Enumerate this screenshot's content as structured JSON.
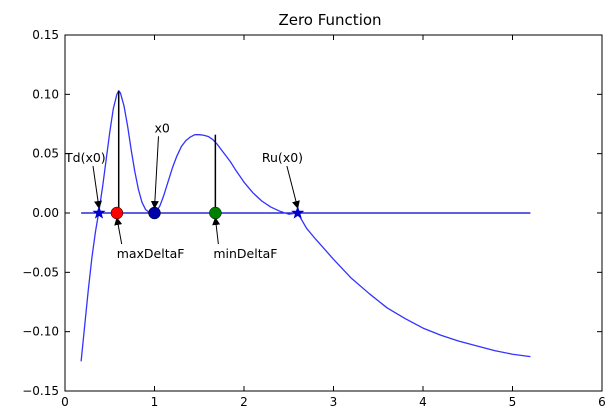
{
  "chart_data": {
    "type": "line",
    "title": "Zero Function",
    "xlabel": "",
    "ylabel": "",
    "xlim": [
      0,
      6
    ],
    "ylim": [
      -0.15,
      0.15
    ],
    "x_ticks": [
      0,
      1,
      2,
      3,
      4,
      5,
      6
    ],
    "y_ticks": [
      -0.15,
      -0.1,
      -0.05,
      0.0,
      0.05,
      0.1,
      0.15
    ],
    "x_tick_labels": [
      "0",
      "1",
      "2",
      "3",
      "4",
      "5",
      "6"
    ],
    "y_tick_labels": [
      "−0.15",
      "−0.10",
      "−0.05",
      "0.00",
      "0.05",
      "0.10",
      "0.15"
    ],
    "grid": false,
    "colors": {
      "curve": "#3333ff",
      "zero_line": "#0000cc",
      "maxDeltaF": "#ff0000",
      "minDeltaF": "#008000",
      "x0": "#0000aa",
      "vertical_lines": "#000000"
    },
    "curve": {
      "x": [
        0.18,
        0.22,
        0.26,
        0.3,
        0.34,
        0.38,
        0.42,
        0.46,
        0.5,
        0.54,
        0.58,
        0.6,
        0.62,
        0.66,
        0.7,
        0.74,
        0.78,
        0.82,
        0.86,
        0.9,
        0.94,
        0.98,
        1.0,
        1.02,
        1.06,
        1.1,
        1.15,
        1.2,
        1.25,
        1.3,
        1.35,
        1.4,
        1.45,
        1.5,
        1.55,
        1.6,
        1.65,
        1.7,
        1.75,
        1.8,
        1.85,
        1.9,
        2.0,
        2.1,
        2.2,
        2.3,
        2.4,
        2.5,
        2.6,
        2.7,
        2.8,
        3.0,
        3.2,
        3.4,
        3.6,
        3.8,
        4.0,
        4.2,
        4.4,
        4.6,
        4.8,
        5.0,
        5.2
      ],
      "y": [
        -0.125,
        -0.095,
        -0.065,
        -0.038,
        -0.016,
        0.002,
        0.022,
        0.045,
        0.068,
        0.088,
        0.1,
        0.103,
        0.101,
        0.09,
        0.073,
        0.053,
        0.035,
        0.02,
        0.009,
        0.003,
        0.0005,
        0.0001,
        0.0002,
        0.001,
        0.006,
        0.014,
        0.026,
        0.038,
        0.048,
        0.056,
        0.061,
        0.064,
        0.066,
        0.066,
        0.0655,
        0.0645,
        0.062,
        0.058,
        0.053,
        0.048,
        0.043,
        0.037,
        0.026,
        0.017,
        0.01,
        0.005,
        0.0015,
        -0.001,
        0.0,
        -0.013,
        -0.022,
        -0.039,
        -0.055,
        -0.068,
        -0.08,
        -0.089,
        -0.097,
        -0.103,
        -0.108,
        -0.112,
        -0.116,
        -0.119,
        -0.121
      ]
    },
    "zero_line": {
      "x_start": 0.18,
      "x_end": 5.2,
      "y": 0.0
    },
    "vertical_lines": [
      {
        "x": 0.6,
        "y_top": 0.103
      },
      {
        "x": 1.68,
        "y_top": 0.066
      }
    ],
    "points": [
      {
        "name": "Td(x0)",
        "x": 0.38,
        "y": 0.0,
        "marker": "star"
      },
      {
        "name": "maxDeltaF",
        "x": 0.58,
        "y": 0.0,
        "marker": "circle"
      },
      {
        "name": "x0",
        "x": 1.0,
        "y": 0.0,
        "marker": "circle"
      },
      {
        "name": "minDeltaF",
        "x": 1.68,
        "y": 0.0,
        "marker": "circle"
      },
      {
        "name": "Ru(x0)",
        "x": 2.6,
        "y": 0.0,
        "marker": "star"
      }
    ],
    "annotations": [
      {
        "text": "Td(x0)",
        "text_x": 0.0,
        "text_y": 0.043,
        "arrow_to_x": 0.38,
        "arrow_to_y": 0.0
      },
      {
        "text": "x0",
        "text_x": 1.0,
        "text_y": 0.068,
        "arrow_to_x": 1.0,
        "arrow_to_y": 0.0
      },
      {
        "text": "Ru(x0)",
        "text_x": 2.2,
        "text_y": 0.043,
        "arrow_to_x": 2.6,
        "arrow_to_y": 0.0
      },
      {
        "text": "maxDeltaF",
        "text_x": 0.6,
        "text_y": -0.038,
        "arrow_to_x": 0.58,
        "arrow_to_y": 0.0
      },
      {
        "text": "minDeltaF",
        "text_x": 1.68,
        "text_y": -0.038,
        "arrow_to_x": 1.68,
        "arrow_to_y": 0.0
      }
    ]
  }
}
